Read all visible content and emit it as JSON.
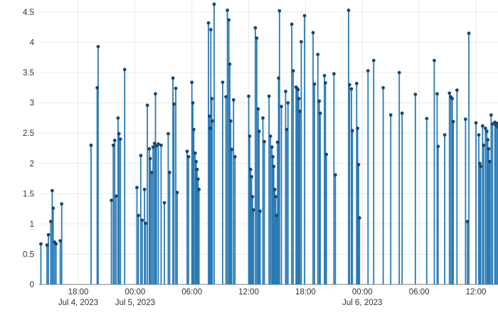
{
  "chart_data": {
    "type": "stem",
    "title": "",
    "xlabel": "",
    "ylabel": "",
    "x_unit": "hours since 2023-07-04 12:00",
    "x_range": [
      1.85,
      50.4
    ],
    "y_range": [
      0,
      4.75
    ],
    "grid": true,
    "legend": false,
    "y_ticks": [
      "0",
      "0.5",
      "1",
      "1.5",
      "2",
      "2.5",
      "3",
      "3.5",
      "4",
      "4.5"
    ],
    "y_tick_values": [
      0,
      0.5,
      1,
      1.5,
      2,
      2.5,
      3,
      3.5,
      4,
      4.5
    ],
    "x_ticks": [
      {
        "t": 6,
        "time": "18:00",
        "date": "Jul 4, 2023"
      },
      {
        "t": 12,
        "time": "00:00",
        "date": "Jul 5, 2023"
      },
      {
        "t": 18,
        "time": "06:00",
        "date": ""
      },
      {
        "t": 24,
        "time": "12:00",
        "date": ""
      },
      {
        "t": 30,
        "time": "18:00",
        "date": ""
      },
      {
        "t": 36,
        "time": "00:00",
        "date": "Jul 6, 2023"
      },
      {
        "t": 42,
        "time": "06:00",
        "date": ""
      },
      {
        "t": 48,
        "time": "12:00",
        "date": ""
      }
    ],
    "points": [
      [
        2.05,
        0.67
      ],
      [
        2.7,
        0.65
      ],
      [
        2.85,
        0.82
      ],
      [
        3.1,
        1.04
      ],
      [
        3.25,
        1.55
      ],
      [
        3.35,
        1.26
      ],
      [
        3.5,
        0.7
      ],
      [
        3.65,
        0.67
      ],
      [
        4.1,
        0.72
      ],
      [
        4.25,
        1.33
      ],
      [
        7.35,
        2.3
      ],
      [
        8.0,
        3.25
      ],
      [
        8.1,
        3.93
      ],
      [
        9.5,
        1.39
      ],
      [
        9.7,
        2.3
      ],
      [
        9.85,
        2.38
      ],
      [
        10.0,
        1.46
      ],
      [
        10.2,
        2.75
      ],
      [
        10.3,
        2.49
      ],
      [
        10.45,
        2.4
      ],
      [
        10.9,
        3.55
      ],
      [
        12.2,
        1.6
      ],
      [
        12.35,
        1.14
      ],
      [
        12.6,
        2.13
      ],
      [
        12.75,
        1.06
      ],
      [
        13.0,
        1.57
      ],
      [
        13.1,
        1.01
      ],
      [
        13.3,
        2.96
      ],
      [
        13.5,
        2.24
      ],
      [
        13.6,
        2.08
      ],
      [
        13.75,
        1.85
      ],
      [
        13.9,
        2.27
      ],
      [
        14.05,
        2.33
      ],
      [
        14.15,
        3.15
      ],
      [
        14.25,
        2.29
      ],
      [
        14.45,
        2.32
      ],
      [
        14.75,
        2.3
      ],
      [
        15.1,
        1.35
      ],
      [
        15.5,
        2.49
      ],
      [
        15.65,
        1.85
      ],
      [
        16.0,
        3.41
      ],
      [
        16.1,
        2.98
      ],
      [
        16.3,
        3.24
      ],
      [
        16.45,
        1.52
      ],
      [
        17.5,
        2.2
      ],
      [
        17.65,
        2.11
      ],
      [
        18.0,
        3.34
      ],
      [
        18.1,
        3.0
      ],
      [
        18.2,
        2.56
      ],
      [
        18.35,
        2.17
      ],
      [
        18.45,
        2.03
      ],
      [
        18.55,
        1.9
      ],
      [
        18.65,
        1.74
      ],
      [
        18.75,
        1.57
      ],
      [
        19.75,
        4.32
      ],
      [
        19.85,
        2.78
      ],
      [
        19.95,
        2.58
      ],
      [
        20.0,
        4.21
      ],
      [
        20.1,
        3.07
      ],
      [
        20.15,
        2.7
      ],
      [
        20.35,
        4.63
      ],
      [
        21.25,
        3.34
      ],
      [
        21.6,
        3.1
      ],
      [
        21.75,
        4.53
      ],
      [
        21.9,
        4.37
      ],
      [
        22.0,
        3.64
      ],
      [
        22.1,
        2.7
      ],
      [
        22.2,
        2.23
      ],
      [
        22.4,
        3.05
      ],
      [
        22.55,
        2.11
      ],
      [
        24.0,
        3.11
      ],
      [
        24.1,
        2.45
      ],
      [
        24.2,
        1.9
      ],
      [
        24.3,
        1.78
      ],
      [
        24.4,
        1.45
      ],
      [
        24.5,
        1.23
      ],
      [
        24.7,
        4.24
      ],
      [
        24.85,
        4.07
      ],
      [
        25.0,
        2.9
      ],
      [
        25.1,
        2.53
      ],
      [
        25.2,
        1.21
      ],
      [
        25.5,
        2.75
      ],
      [
        25.65,
        2.36
      ],
      [
        26.15,
        3.11
      ],
      [
        26.3,
        2.45
      ],
      [
        26.45,
        2.27
      ],
      [
        26.55,
        2.11
      ],
      [
        26.65,
        1.95
      ],
      [
        26.75,
        1.57
      ],
      [
        26.85,
        1.45
      ],
      [
        26.95,
        1.14
      ],
      [
        27.05,
        2.35
      ],
      [
        27.15,
        3.41
      ],
      [
        27.25,
        4.52
      ],
      [
        27.45,
        2.94
      ],
      [
        27.9,
        3.19
      ],
      [
        28.0,
        2.56
      ],
      [
        28.15,
        3.0
      ],
      [
        28.55,
        4.3
      ],
      [
        28.7,
        3.53
      ],
      [
        29.0,
        3.26
      ],
      [
        29.1,
        3.24
      ],
      [
        29.2,
        3.22
      ],
      [
        29.3,
        3.07
      ],
      [
        29.4,
        2.86
      ],
      [
        29.55,
        4.01
      ],
      [
        29.9,
        4.44
      ],
      [
        30.8,
        4.16
      ],
      [
        30.95,
        3.31
      ],
      [
        31.3,
        3.8
      ],
      [
        31.45,
        3.03
      ],
      [
        31.55,
        2.83
      ],
      [
        32.0,
        3.45
      ],
      [
        32.1,
        3.33
      ],
      [
        32.2,
        2.15
      ],
      [
        33.0,
        3.48
      ],
      [
        33.15,
        1.81
      ],
      [
        34.55,
        4.53
      ],
      [
        34.65,
        3.3
      ],
      [
        34.85,
        3.23
      ],
      [
        34.95,
        2.54
      ],
      [
        35.4,
        3.32
      ],
      [
        35.5,
        2.58
      ],
      [
        35.6,
        1.98
      ],
      [
        35.7,
        1.1
      ],
      [
        36.6,
        3.53
      ],
      [
        37.2,
        3.7
      ],
      [
        38.2,
        3.25
      ],
      [
        39.0,
        2.8
      ],
      [
        39.9,
        3.5
      ],
      [
        40.2,
        2.83
      ],
      [
        41.6,
        3.14
      ],
      [
        42.8,
        2.74
      ],
      [
        43.6,
        3.7
      ],
      [
        43.9,
        3.15
      ],
      [
        44.0,
        2.28
      ],
      [
        44.7,
        2.47
      ],
      [
        45.2,
        3.16
      ],
      [
        45.35,
        3.1
      ],
      [
        45.5,
        3.07
      ],
      [
        45.6,
        2.69
      ],
      [
        46.0,
        3.21
      ],
      [
        46.9,
        2.73
      ],
      [
        47.1,
        1.04
      ],
      [
        47.25,
        4.15
      ],
      [
        48.0,
        2.67
      ],
      [
        48.3,
        2.47
      ],
      [
        48.4,
        2.0
      ],
      [
        48.5,
        1.95
      ],
      [
        48.7,
        2.62
      ],
      [
        48.8,
        2.3
      ],
      [
        49.0,
        2.58
      ],
      [
        49.15,
        2.53
      ],
      [
        49.25,
        2.39
      ],
      [
        49.35,
        2.24
      ],
      [
        49.45,
        2.03
      ],
      [
        49.6,
        2.8
      ],
      [
        49.75,
        2.65
      ],
      [
        50.0,
        2.68
      ],
      [
        50.1,
        2.63
      ],
      [
        50.25,
        2.66
      ],
      [
        50.35,
        2.6
      ]
    ]
  },
  "colors": {
    "background": "#ffffff",
    "stem": "#2a7ab5",
    "marker": "#17486e",
    "grid": "#e9eaec",
    "axis_line": "#999999",
    "tick_text": "#333333"
  }
}
